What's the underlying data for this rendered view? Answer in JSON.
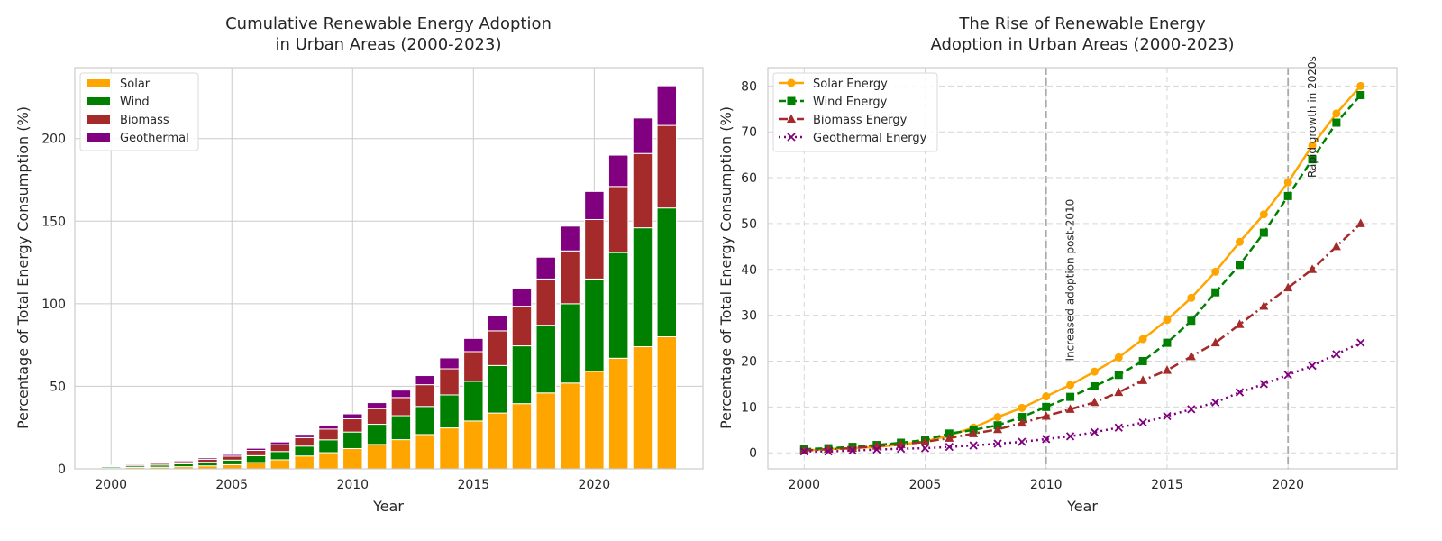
{
  "colors": {
    "solar": "#FFA500",
    "wind": "#008000",
    "biomass": "#A52A2A",
    "geothermal": "#800080",
    "grid": "#cccccc",
    "spine": "#cccccc",
    "vline": "#aaaaaa",
    "text": "#262626"
  },
  "chart_data": [
    {
      "type": "bar",
      "stacked": true,
      "title_lines": [
        "Cumulative Renewable Energy Adoption",
        "in Urban Areas (2000-2023)"
      ],
      "xlabel": "Year",
      "ylabel": "Percentage of Total Energy Consumption (%)",
      "xlim": [
        1998.5,
        2024.5
      ],
      "ylim": [
        0,
        243
      ],
      "xticks": [
        2000,
        2005,
        2010,
        2015,
        2020
      ],
      "yticks": [
        0,
        50,
        100,
        150,
        200
      ],
      "grid": true,
      "legend_position": "top-left",
      "categories": [
        2000,
        2001,
        2002,
        2003,
        2004,
        2005,
        2006,
        2007,
        2008,
        2009,
        2010,
        2011,
        2012,
        2013,
        2014,
        2015,
        2016,
        2017,
        2018,
        2019,
        2020,
        2021,
        2022,
        2023
      ],
      "series": [
        {
          "name": "Solar",
          "color_key": "solar",
          "values": [
            0.5,
            0.8,
            1.0,
            1.3,
            1.8,
            2.5,
            3.8,
            5.5,
            7.8,
            9.8,
            12.3,
            14.8,
            17.7,
            20.8,
            24.8,
            29.0,
            33.8,
            39.5,
            46.0,
            52.0,
            59.0,
            67.0,
            74.0,
            80.0
          ]
        },
        {
          "name": "Wind",
          "color_key": "wind",
          "values": [
            0.8,
            1.0,
            1.3,
            1.7,
            2.2,
            2.8,
            4.2,
            5.0,
            6.0,
            7.8,
            10.0,
            12.2,
            14.5,
            17.0,
            20.0,
            24.0,
            28.8,
            35.0,
            41.0,
            48.0,
            56.0,
            64.0,
            72.0,
            78.0
          ]
        },
        {
          "name": "Biomass",
          "color_key": "biomass",
          "values": [
            0.5,
            0.8,
            1.0,
            1.5,
            1.8,
            2.4,
            3.2,
            4.2,
            5.1,
            6.5,
            8.0,
            9.5,
            11.0,
            13.2,
            15.8,
            18.0,
            21.0,
            24.0,
            28.0,
            32.0,
            36.0,
            40.0,
            45.0,
            50.0
          ]
        },
        {
          "name": "Geothermal",
          "color_key": "geothermal",
          "values": [
            0.3,
            0.3,
            0.5,
            0.7,
            0.9,
            1.0,
            1.3,
            1.6,
            2.0,
            2.4,
            3.0,
            3.6,
            4.5,
            5.5,
            6.6,
            8.0,
            9.5,
            11.0,
            13.2,
            15.0,
            17.0,
            19.0,
            21.5,
            24.0
          ]
        }
      ]
    },
    {
      "type": "line",
      "title_lines": [
        "The Rise of Renewable Energy",
        "Adoption in Urban Areas (2000-2023)"
      ],
      "xlabel": "Year",
      "ylabel": "Percentage of Total Energy Consumption (%)",
      "xlim": [
        1998.5,
        2024.5
      ],
      "ylim": [
        -3.5,
        84
      ],
      "xticks": [
        2000,
        2005,
        2010,
        2015,
        2020
      ],
      "yticks": [
        0,
        10,
        20,
        30,
        40,
        50,
        60,
        70,
        80
      ],
      "grid": true,
      "legend_position": "top-left",
      "x": [
        2000,
        2001,
        2002,
        2003,
        2004,
        2005,
        2006,
        2007,
        2008,
        2009,
        2010,
        2011,
        2012,
        2013,
        2014,
        2015,
        2016,
        2017,
        2018,
        2019,
        2020,
        2021,
        2022,
        2023
      ],
      "series": [
        {
          "name": "Solar Energy",
          "color_key": "solar",
          "marker": "circle",
          "linestyle": "solid",
          "values": [
            0.5,
            0.8,
            1.0,
            1.3,
            1.8,
            2.5,
            3.8,
            5.5,
            7.8,
            9.8,
            12.3,
            14.8,
            17.7,
            20.8,
            24.8,
            29.0,
            33.8,
            39.5,
            46.0,
            52.0,
            59.0,
            67.0,
            74.0,
            80.0
          ]
        },
        {
          "name": "Wind Energy",
          "color_key": "wind",
          "marker": "square",
          "linestyle": "dashed",
          "values": [
            0.8,
            1.0,
            1.3,
            1.7,
            2.2,
            2.8,
            4.2,
            5.0,
            6.0,
            7.8,
            10.0,
            12.2,
            14.5,
            17.0,
            20.0,
            24.0,
            28.8,
            35.0,
            41.0,
            48.0,
            56.0,
            64.0,
            72.0,
            78.0
          ]
        },
        {
          "name": "Biomass Energy",
          "color_key": "biomass",
          "marker": "triangle",
          "linestyle": "dashdot",
          "values": [
            0.5,
            0.8,
            1.0,
            1.5,
            1.8,
            2.4,
            3.2,
            4.2,
            5.1,
            6.5,
            8.0,
            9.5,
            11.0,
            13.2,
            15.8,
            18.0,
            21.0,
            24.0,
            28.0,
            32.0,
            36.0,
            40.0,
            45.0,
            50.0
          ]
        },
        {
          "name": "Geothermal Energy",
          "color_key": "geothermal",
          "marker": "x",
          "linestyle": "dotted",
          "values": [
            0.3,
            0.3,
            0.5,
            0.7,
            0.9,
            1.0,
            1.3,
            1.6,
            2.0,
            2.4,
            3.0,
            3.6,
            4.5,
            5.5,
            6.6,
            8.0,
            9.5,
            11.0,
            13.2,
            15.0,
            17.0,
            19.0,
            21.5,
            24.0
          ]
        }
      ],
      "vlines": [
        2010,
        2020
      ],
      "annotations": [
        {
          "text": "Increased adoption post-2010",
          "x": 2011,
          "y": 20
        },
        {
          "text": "Rapid growth in 2020s",
          "x": 2021,
          "y": 60
        }
      ]
    }
  ]
}
